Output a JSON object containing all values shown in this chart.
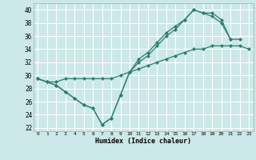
{
  "xlabel": "Humidex (Indice chaleur)",
  "xlim": [
    -0.5,
    23.5
  ],
  "ylim": [
    21.5,
    41.0
  ],
  "yticks": [
    22,
    24,
    26,
    28,
    30,
    32,
    34,
    36,
    38,
    40
  ],
  "xticks": [
    0,
    1,
    2,
    3,
    4,
    5,
    6,
    7,
    8,
    9,
    10,
    11,
    12,
    13,
    14,
    15,
    16,
    17,
    18,
    19,
    20,
    21,
    22,
    23
  ],
  "bg_color": "#cce8e8",
  "grid_color": "#ffffff",
  "line_color": "#2e7d6e",
  "line1_x": [
    0,
    1,
    2,
    3,
    4,
    5,
    6,
    7,
    8,
    9,
    10,
    11,
    12,
    13,
    14,
    15,
    16,
    17,
    18,
    19,
    20,
    21
  ],
  "line1_y": [
    29.5,
    29.0,
    28.5,
    27.5,
    26.5,
    25.5,
    25.0,
    22.5,
    23.5,
    27.0,
    30.5,
    32.0,
    33.0,
    34.5,
    36.0,
    37.0,
    38.5,
    40.0,
    39.5,
    39.5,
    38.5,
    35.5
  ],
  "line2_x": [
    0,
    1,
    2,
    3,
    4,
    5,
    6,
    7,
    8,
    9,
    10,
    11,
    12,
    13,
    14,
    15,
    16,
    17,
    18,
    19,
    20,
    21,
    22,
    23
  ],
  "line2_y": [
    29.5,
    29.0,
    29.0,
    29.5,
    29.5,
    29.5,
    29.5,
    29.5,
    29.5,
    30.0,
    30.5,
    31.0,
    31.5,
    32.0,
    32.5,
    33.0,
    33.5,
    34.0,
    34.0,
    34.5,
    34.5,
    34.5,
    34.5,
    34.0
  ],
  "line3_x": [
    0,
    1,
    2,
    3,
    4,
    5,
    6,
    7,
    8,
    9,
    10,
    11,
    12,
    13,
    14,
    15,
    16,
    17,
    18,
    19,
    20,
    21,
    22
  ],
  "line3_y": [
    29.5,
    29.0,
    28.5,
    27.5,
    26.5,
    25.5,
    25.0,
    22.5,
    23.5,
    27.0,
    30.5,
    32.5,
    33.5,
    35.0,
    36.5,
    37.5,
    38.5,
    40.0,
    39.5,
    39.0,
    38.0,
    35.5,
    35.5
  ]
}
